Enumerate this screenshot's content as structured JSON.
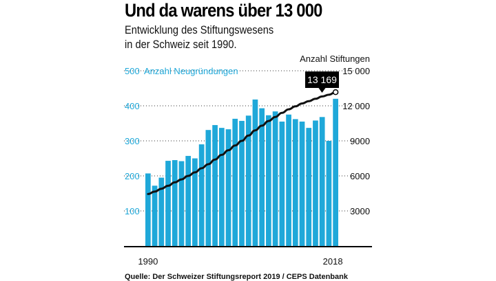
{
  "header": {
    "title": "Und da warens über 13 000",
    "subtitle_line1": "Entwicklung des Stiftungswesens",
    "subtitle_line2": "in der Schweiz seit 1990."
  },
  "colors": {
    "bar": "#1fa8d9",
    "line": "#111111",
    "callout_bg": "#000000",
    "callout_text": "#ffffff",
    "left_axis": "#1fa8d9"
  },
  "source": "Quelle: Der Schweizer Stiftungsreport 2019 / CEPS Datenbank",
  "chart_data": {
    "type": "bar",
    "title": "Und da warens über 13 000",
    "x_start": 1990,
    "x_end": 2018,
    "x_tick_labels": [
      "1990",
      "2018"
    ],
    "series": [
      {
        "name": "Anzahl Neugründungen",
        "type": "bar",
        "axis": "left",
        "years": [
          1990,
          1991,
          1992,
          1993,
          1994,
          1995,
          1996,
          1997,
          1998,
          1999,
          2000,
          2001,
          2002,
          2003,
          2004,
          2005,
          2006,
          2007,
          2008,
          2009,
          2010,
          2011,
          2012,
          2013,
          2014,
          2015,
          2016,
          2017,
          2018
        ],
        "values": [
          207,
          172,
          195,
          243,
          245,
          242,
          257,
          250,
          290,
          331,
          345,
          337,
          333,
          363,
          357,
          372,
          418,
          393,
          373,
          384,
          355,
          375,
          362,
          355,
          337,
          358,
          368,
          300,
          420
        ]
      },
      {
        "name": "Anzahl Stiftungen",
        "type": "line",
        "axis": "right",
        "years": [
          1990,
          1991,
          1992,
          1993,
          1994,
          1995,
          1996,
          1997,
          1998,
          1999,
          2000,
          2001,
          2002,
          2003,
          2004,
          2005,
          2006,
          2007,
          2008,
          2009,
          2010,
          2011,
          2012,
          2013,
          2014,
          2015,
          2016,
          2017,
          2018
        ],
        "values": [
          4450,
          4650,
          4900,
          5150,
          5450,
          5700,
          6000,
          6300,
          6650,
          7000,
          7400,
          7800,
          8200,
          8600,
          9000,
          9450,
          9900,
          10300,
          10700,
          11050,
          11400,
          11700,
          11950,
          12200,
          12400,
          12600,
          12800,
          12950,
          13169
        ]
      }
    ],
    "left_axis": {
      "label": "Anzahl Neugründungen",
      "ticks": [
        100,
        200,
        300,
        400,
        500
      ],
      "range": [
        0,
        500
      ]
    },
    "right_axis": {
      "label": "Anzahl Stiftungen",
      "ticks": [
        "3000",
        "6000",
        "9000",
        "12 000",
        "15 000"
      ],
      "tick_values": [
        3000,
        6000,
        9000,
        12000,
        15000
      ],
      "range": [
        0,
        15000
      ]
    },
    "callout": {
      "label": "13 169",
      "year": 2018,
      "value": 13169
    }
  }
}
